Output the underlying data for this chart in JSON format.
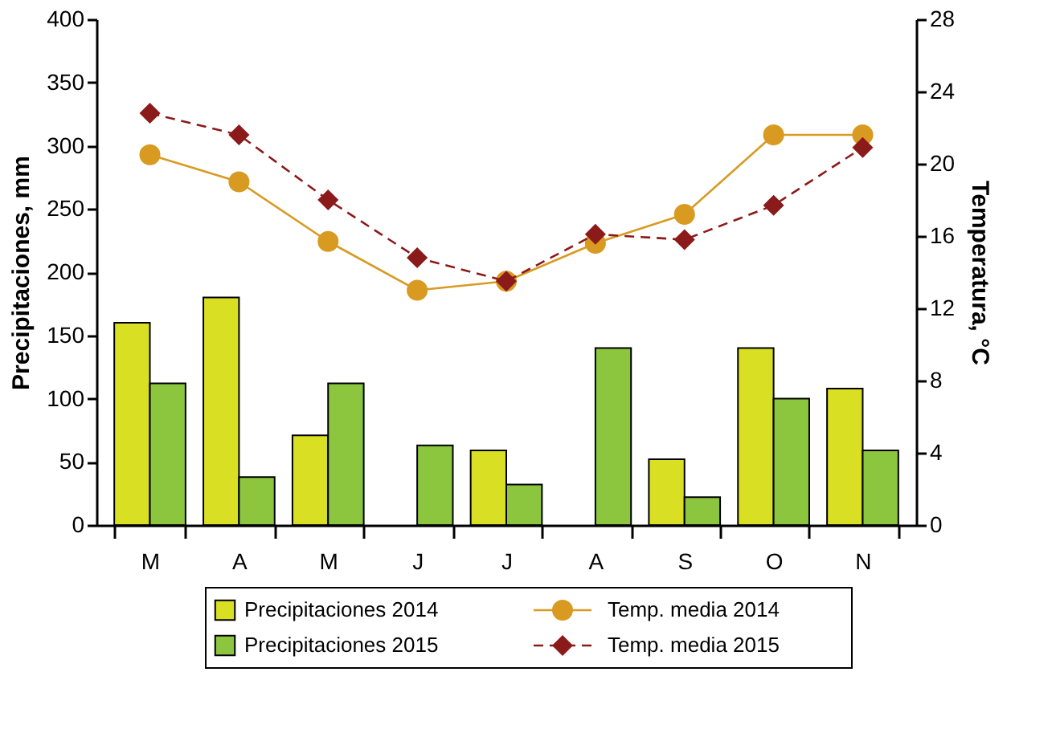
{
  "chart_data": {
    "type": "bar",
    "categories": [
      "M",
      "A",
      "M",
      "J",
      "J",
      "A",
      "S",
      "O",
      "N"
    ],
    "ylabel": "Precipitaciones, mm",
    "y2label": "Temperatura, °C",
    "ylim": [
      0,
      400
    ],
    "yticks": [
      0,
      50,
      100,
      150,
      200,
      250,
      300,
      350,
      400
    ],
    "y2lim": [
      0,
      28
    ],
    "y2ticks": [
      0,
      4,
      8,
      12,
      16,
      20,
      24,
      28
    ],
    "grid": false,
    "legend": "bottom",
    "series": [
      {
        "name": "Precipitaciones 2014",
        "color": "#d9df22",
        "values": [
          160,
          180,
          71,
          null,
          59,
          null,
          52,
          140,
          108
        ]
      },
      {
        "name": "Precipitaciones 2015",
        "color": "#8cc63f",
        "values": [
          112,
          38,
          112,
          63,
          32,
          140,
          22,
          100,
          59
        ]
      },
      {
        "name": "Temp. media 2014",
        "type": "line",
        "axis": "y2",
        "color": "#d99a22",
        "marker": "circle",
        "line_style": "solid",
        "values": [
          20.5,
          19.0,
          15.7,
          13.0,
          13.5,
          15.6,
          17.2,
          21.6,
          21.6
        ]
      },
      {
        "name": "Temp. media 2015",
        "type": "line",
        "axis": "y2",
        "color": "#8b1a1a",
        "marker": "diamond",
        "line_style": "dashed",
        "values": [
          22.8,
          21.6,
          18.0,
          14.8,
          13.5,
          16.1,
          15.8,
          17.7,
          20.9
        ]
      }
    ]
  }
}
